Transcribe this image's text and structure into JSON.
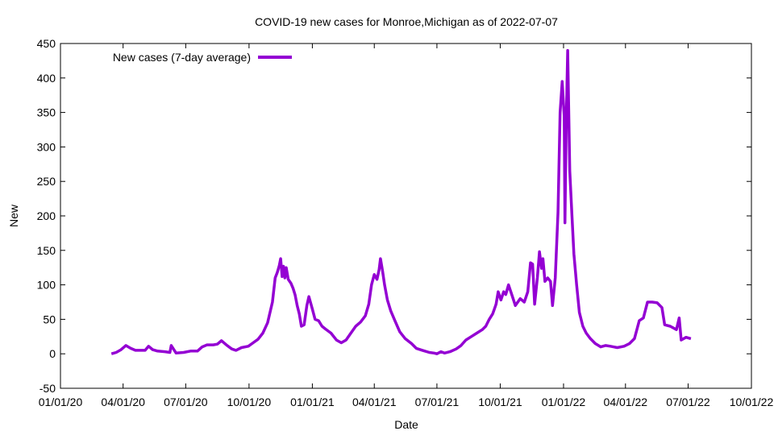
{
  "chart_data": {
    "type": "line",
    "title": "COVID-19 new cases for Monroe,Michigan as of 2022-07-07",
    "xlabel": "Date",
    "ylabel": "New",
    "xlim": [
      "2020-01-01",
      "2022-10-01"
    ],
    "ylim": [
      -50,
      450
    ],
    "x_ticks": [
      "01/01/20",
      "04/01/20",
      "07/01/20",
      "10/01/20",
      "01/01/21",
      "04/01/21",
      "07/01/21",
      "10/01/21",
      "01/01/22",
      "04/01/22",
      "07/01/22",
      "10/01/22"
    ],
    "y_ticks": [
      -50,
      0,
      50,
      100,
      150,
      200,
      250,
      300,
      350,
      400,
      450
    ],
    "grid": false,
    "legend_position": "top-left",
    "series": [
      {
        "name": "New cases (7-day average)",
        "color": "#9400d3",
        "points": [
          [
            "2020-03-15",
            0
          ],
          [
            "2020-03-22",
            2
          ],
          [
            "2020-03-29",
            6
          ],
          [
            "2020-04-05",
            12
          ],
          [
            "2020-04-12",
            8
          ],
          [
            "2020-04-19",
            5
          ],
          [
            "2020-04-26",
            5
          ],
          [
            "2020-05-03",
            5
          ],
          [
            "2020-05-08",
            11
          ],
          [
            "2020-05-14",
            6
          ],
          [
            "2020-05-21",
            4
          ],
          [
            "2020-06-01",
            3
          ],
          [
            "2020-06-08",
            2
          ],
          [
            "2020-06-10",
            12
          ],
          [
            "2020-06-17",
            1
          ],
          [
            "2020-06-28",
            2
          ],
          [
            "2020-07-08",
            4
          ],
          [
            "2020-07-18",
            4
          ],
          [
            "2020-07-25",
            10
          ],
          [
            "2020-08-01",
            13
          ],
          [
            "2020-08-10",
            13
          ],
          [
            "2020-08-16",
            14
          ],
          [
            "2020-08-22",
            19
          ],
          [
            "2020-08-29",
            13
          ],
          [
            "2020-09-06",
            7
          ],
          [
            "2020-09-12",
            5
          ],
          [
            "2020-09-20",
            9
          ],
          [
            "2020-09-30",
            11
          ],
          [
            "2020-10-07",
            16
          ],
          [
            "2020-10-14",
            21
          ],
          [
            "2020-10-21",
            30
          ],
          [
            "2020-10-28",
            45
          ],
          [
            "2020-11-04",
            75
          ],
          [
            "2020-11-08",
            110
          ],
          [
            "2020-11-11",
            118
          ],
          [
            "2020-11-14",
            128
          ],
          [
            "2020-11-16",
            138
          ],
          [
            "2020-11-18",
            112
          ],
          [
            "2020-11-20",
            127
          ],
          [
            "2020-11-22",
            110
          ],
          [
            "2020-11-24",
            125
          ],
          [
            "2020-11-27",
            108
          ],
          [
            "2020-12-01",
            102
          ],
          [
            "2020-12-04",
            95
          ],
          [
            "2020-12-07",
            85
          ],
          [
            "2020-12-10",
            70
          ],
          [
            "2020-12-13",
            58
          ],
          [
            "2020-12-16",
            40
          ],
          [
            "2020-12-20",
            42
          ],
          [
            "2020-12-24",
            70
          ],
          [
            "2020-12-27",
            83
          ],
          [
            "2021-01-01",
            65
          ],
          [
            "2021-01-05",
            50
          ],
          [
            "2021-01-10",
            48
          ],
          [
            "2021-01-15",
            40
          ],
          [
            "2021-01-20",
            36
          ],
          [
            "2021-01-28",
            30
          ],
          [
            "2021-02-05",
            20
          ],
          [
            "2021-02-12",
            16
          ],
          [
            "2021-02-19",
            20
          ],
          [
            "2021-02-26",
            30
          ],
          [
            "2021-03-05",
            40
          ],
          [
            "2021-03-12",
            46
          ],
          [
            "2021-03-19",
            55
          ],
          [
            "2021-03-24",
            72
          ],
          [
            "2021-03-28",
            100
          ],
          [
            "2021-04-01",
            115
          ],
          [
            "2021-04-05",
            108
          ],
          [
            "2021-04-08",
            122
          ],
          [
            "2021-04-10",
            138
          ],
          [
            "2021-04-13",
            120
          ],
          [
            "2021-04-16",
            100
          ],
          [
            "2021-04-20",
            78
          ],
          [
            "2021-04-25",
            62
          ],
          [
            "2021-05-01",
            48
          ],
          [
            "2021-05-08",
            32
          ],
          [
            "2021-05-16",
            22
          ],
          [
            "2021-05-25",
            15
          ],
          [
            "2021-06-01",
            8
          ],
          [
            "2021-06-10",
            5
          ],
          [
            "2021-06-20",
            2
          ],
          [
            "2021-06-27",
            1
          ],
          [
            "2021-07-01",
            0
          ],
          [
            "2021-07-07",
            3
          ],
          [
            "2021-07-12",
            1
          ],
          [
            "2021-07-20",
            3
          ],
          [
            "2021-07-29",
            7
          ],
          [
            "2021-08-05",
            12
          ],
          [
            "2021-08-12",
            20
          ],
          [
            "2021-08-20",
            25
          ],
          [
            "2021-08-28",
            30
          ],
          [
            "2021-09-05",
            35
          ],
          [
            "2021-09-10",
            40
          ],
          [
            "2021-09-15",
            50
          ],
          [
            "2021-09-20",
            58
          ],
          [
            "2021-09-25",
            72
          ],
          [
            "2021-09-28",
            90
          ],
          [
            "2021-10-02",
            78
          ],
          [
            "2021-10-06",
            90
          ],
          [
            "2021-10-09",
            86
          ],
          [
            "2021-10-13",
            100
          ],
          [
            "2021-10-18",
            85
          ],
          [
            "2021-10-23",
            70
          ],
          [
            "2021-10-30",
            80
          ],
          [
            "2021-11-05",
            75
          ],
          [
            "2021-11-10",
            90
          ],
          [
            "2021-11-14",
            132
          ],
          [
            "2021-11-17",
            130
          ],
          [
            "2021-11-20",
            72
          ],
          [
            "2021-11-24",
            110
          ],
          [
            "2021-11-27",
            148
          ],
          [
            "2021-11-30",
            124
          ],
          [
            "2021-12-02",
            138
          ],
          [
            "2021-12-05",
            105
          ],
          [
            "2021-12-09",
            110
          ],
          [
            "2021-12-13",
            105
          ],
          [
            "2021-12-16",
            70
          ],
          [
            "2021-12-20",
            110
          ],
          [
            "2021-12-24",
            205
          ],
          [
            "2021-12-27",
            350
          ],
          [
            "2021-12-30",
            395
          ],
          [
            "2022-01-02",
            345
          ],
          [
            "2022-01-03",
            190
          ],
          [
            "2022-01-05",
            342
          ],
          [
            "2022-01-07",
            440
          ],
          [
            "2022-01-10",
            265
          ],
          [
            "2022-01-13",
            205
          ],
          [
            "2022-01-16",
            145
          ],
          [
            "2022-01-20",
            100
          ],
          [
            "2022-01-24",
            60
          ],
          [
            "2022-01-29",
            40
          ],
          [
            "2022-02-03",
            30
          ],
          [
            "2022-02-09",
            22
          ],
          [
            "2022-02-16",
            15
          ],
          [
            "2022-02-24",
            10
          ],
          [
            "2022-03-03",
            12
          ],
          [
            "2022-03-10",
            11
          ],
          [
            "2022-03-20",
            9
          ],
          [
            "2022-03-30",
            11
          ],
          [
            "2022-04-07",
            15
          ],
          [
            "2022-04-14",
            22
          ],
          [
            "2022-04-21",
            48
          ],
          [
            "2022-04-27",
            52
          ],
          [
            "2022-05-03",
            75
          ],
          [
            "2022-05-10",
            75
          ],
          [
            "2022-05-17",
            74
          ],
          [
            "2022-05-24",
            67
          ],
          [
            "2022-05-28",
            42
          ],
          [
            "2022-06-05",
            40
          ],
          [
            "2022-06-14",
            35
          ],
          [
            "2022-06-18",
            52
          ],
          [
            "2022-06-21",
            20
          ],
          [
            "2022-06-28",
            24
          ],
          [
            "2022-07-05",
            22
          ]
        ]
      }
    ]
  }
}
